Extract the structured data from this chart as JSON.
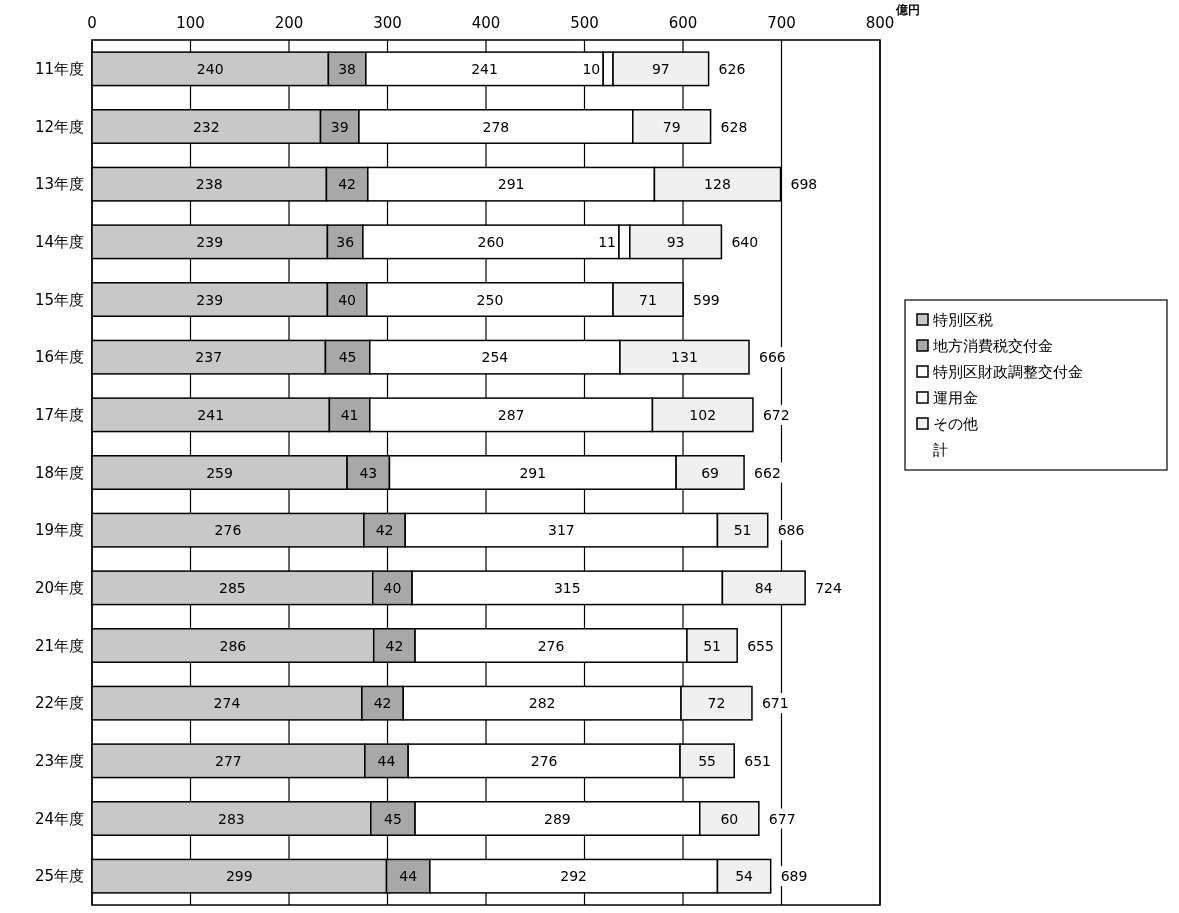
{
  "chart_data": {
    "type": "bar",
    "orientation": "horizontal",
    "stacked": true,
    "xlabel": "億円",
    "categories": [
      "11年度",
      "12年度",
      "13年度",
      "14年度",
      "15年度",
      "16年度",
      "17年度",
      "18年度",
      "19年度",
      "20年度",
      "21年度",
      "22年度",
      "23年度",
      "24年度",
      "25年度"
    ],
    "series": [
      {
        "name": "特別区税",
        "color": "#c8c8c8",
        "values": [
          240,
          232,
          238,
          239,
          239,
          237,
          241,
          259,
          276,
          285,
          286,
          274,
          277,
          283,
          299
        ]
      },
      {
        "name": "地方消費税交付金",
        "color": "#a8a8a8",
        "values": [
          38,
          39,
          42,
          36,
          40,
          45,
          41,
          43,
          42,
          40,
          42,
          42,
          44,
          45,
          44
        ]
      },
      {
        "name": "特別区財政調整交付金",
        "color": "#ffffff",
        "values": [
          241,
          278,
          291,
          260,
          250,
          254,
          287,
          291,
          317,
          315,
          276,
          282,
          276,
          289,
          292
        ]
      },
      {
        "name": "運用金",
        "color": "#ffffff",
        "values": [
          10,
          null,
          null,
          11,
          null,
          null,
          null,
          null,
          null,
          null,
          null,
          null,
          null,
          null,
          null
        ]
      },
      {
        "name": "その他",
        "color": "#f0f0f0",
        "values": [
          97,
          79,
          128,
          93,
          71,
          131,
          102,
          69,
          51,
          84,
          51,
          72,
          55,
          60,
          54
        ]
      }
    ],
    "totals": [
      "626",
      "628",
      "698",
      "640",
      "599",
      "666",
      "672",
      "662",
      "686",
      "724",
      "655",
      "671",
      "651",
      "677",
      "689"
    ],
    "annotations": [
      "計"
    ],
    "data_labels": true,
    "xlim": [
      0,
      800
    ],
    "xticks": [
      0,
      100,
      200,
      300,
      400,
      500,
      600,
      700,
      800
    ],
    "grid": "x",
    "legend": "right"
  }
}
